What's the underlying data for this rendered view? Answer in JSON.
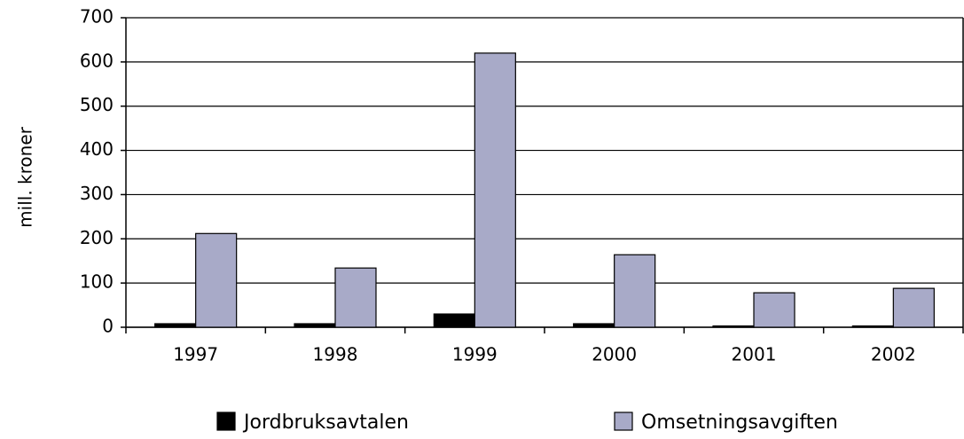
{
  "chart_data": {
    "type": "bar",
    "y_label": "mill. kroner",
    "categories": [
      "1997",
      "1998",
      "1999",
      "2000",
      "2001",
      "2002"
    ],
    "series": [
      {
        "name": "Jordbruksavtalen",
        "color": "#000000",
        "values": [
          8,
          8,
          30,
          8,
          3,
          3
        ]
      },
      {
        "name": "Omsetningsavgiften",
        "color": "#a8aac8",
        "values": [
          212,
          134,
          620,
          164,
          78,
          88
        ]
      }
    ],
    "ylim": [
      0,
      700
    ],
    "yticks": [
      0,
      100,
      200,
      300,
      400,
      500,
      600,
      700
    ],
    "grid": true,
    "legend": "bottom"
  }
}
